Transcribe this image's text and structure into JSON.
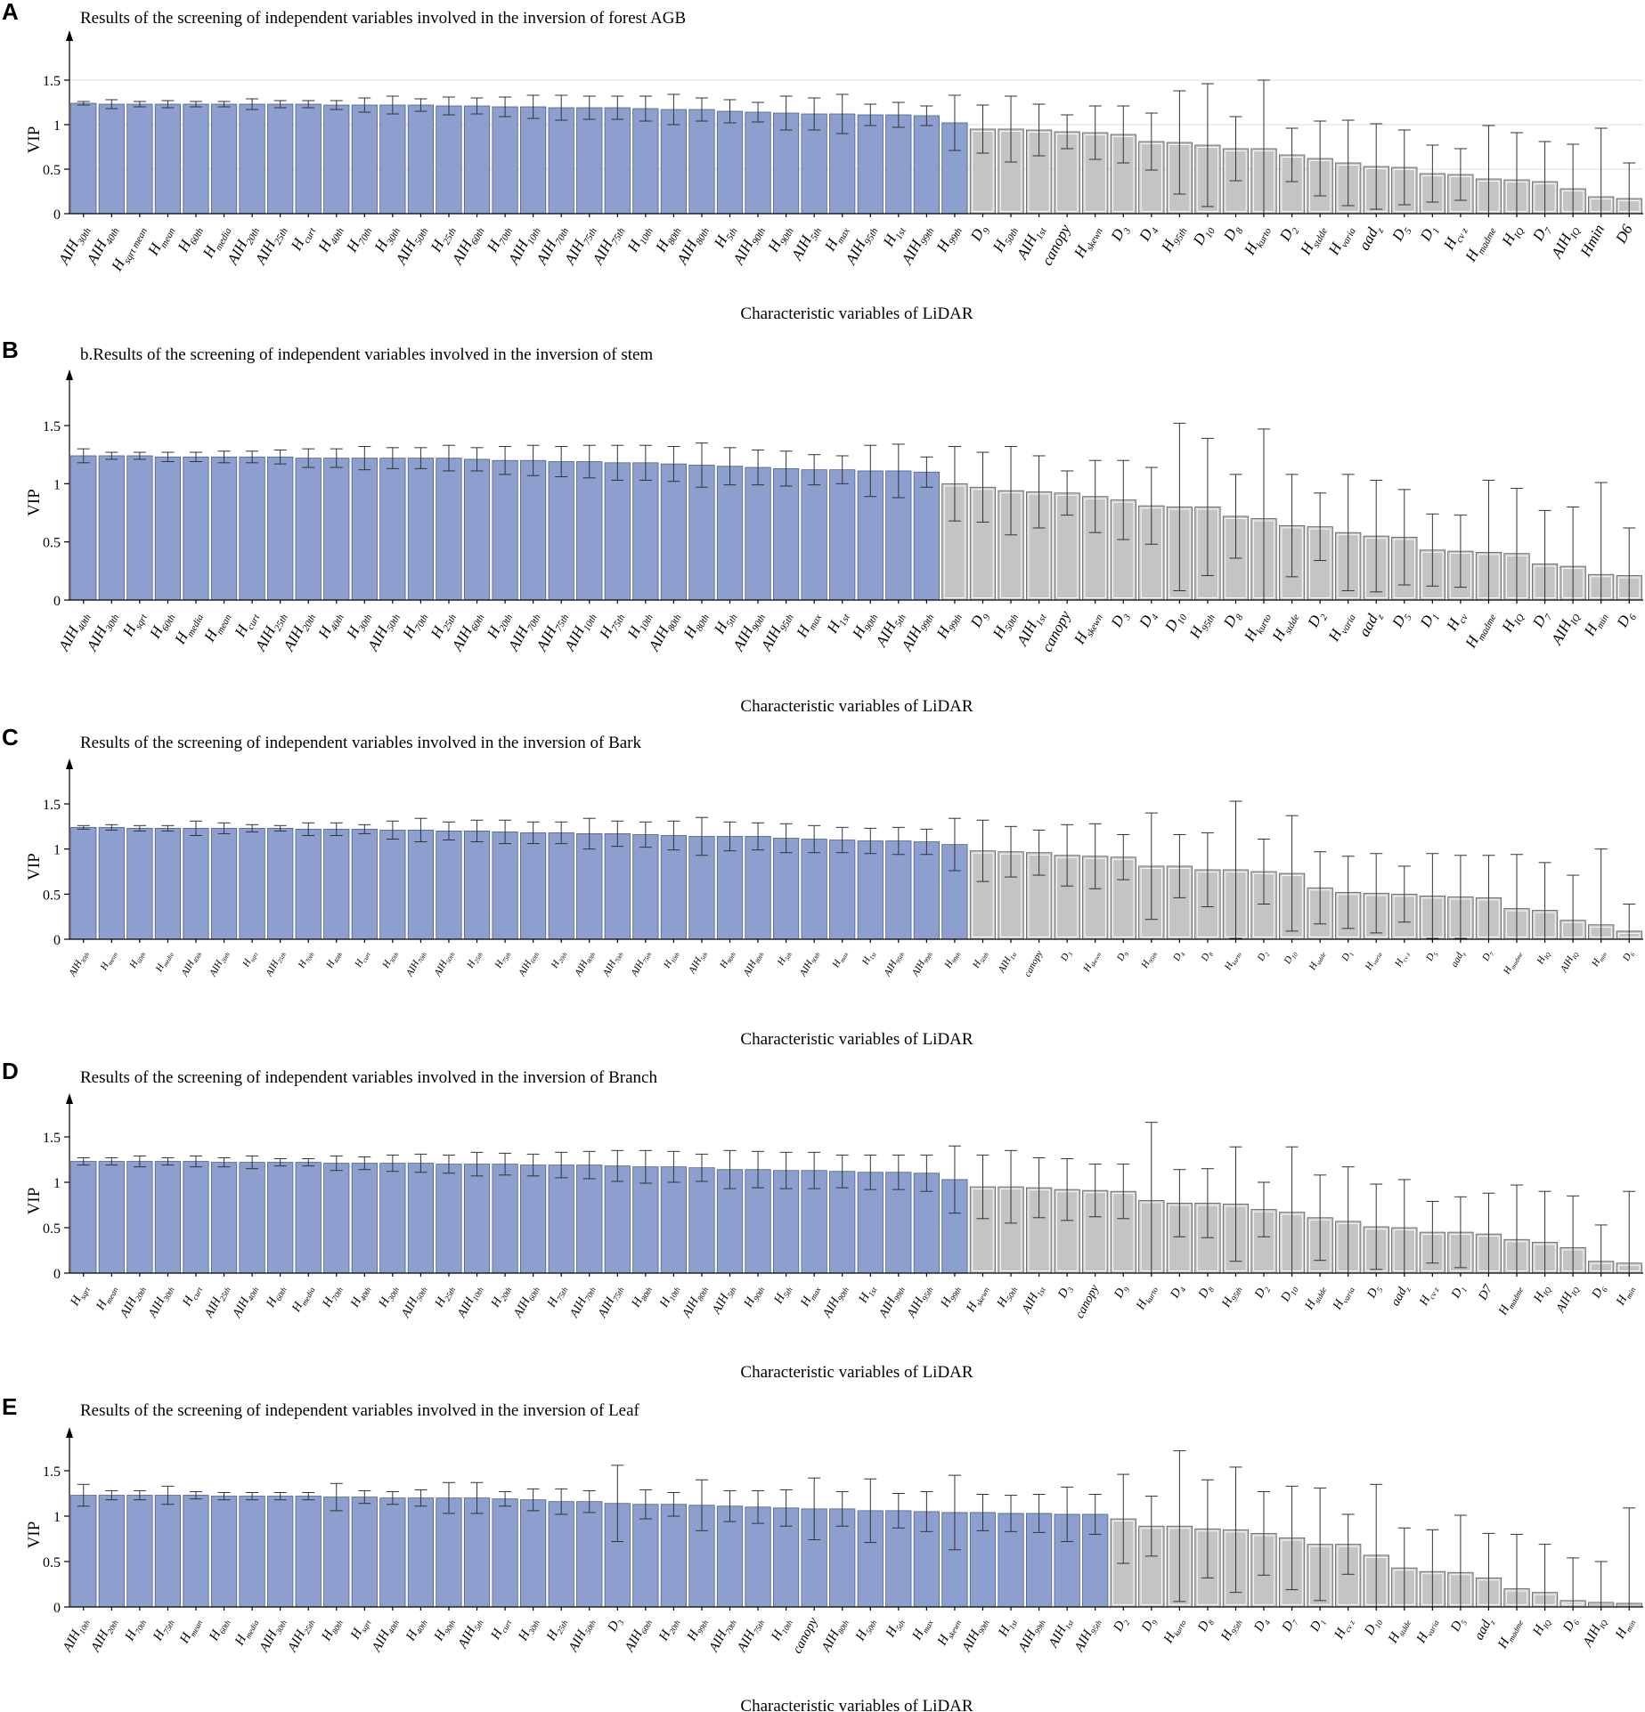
{
  "xlabel": "Characteristic variables of LiDAR",
  "ylabel": "VIP",
  "colors": {
    "selected": "#8c9fcf",
    "rejected": "#c4c4c4"
  },
  "chart_data": [
    {
      "type": "bar",
      "letter": "A",
      "title": "Results of the screening of independent variables involved in the inversion of forest AGB",
      "ylim": [
        0,
        1.5
      ],
      "yticks": [
        0,
        0.5,
        1,
        1.5
      ],
      "grid": true,
      "categories": [
        "AIH_30th",
        "AIH_40th",
        "H_sqrt_mean",
        "H_mean",
        "H_60th",
        "H_media",
        "AIH_20th",
        "AIH_25th",
        "H_curt",
        "H_40th",
        "H_70th",
        "H_30th",
        "AIH_50th",
        "H_25th",
        "AIH_60th",
        "H_70th",
        "AIH_10th",
        "AIH_70th",
        "AIH_75th",
        "AIH_75th",
        "H_10th",
        "H_80th",
        "AIH_80th",
        "H_5th",
        "AIH_90th",
        "H_90th",
        "AIH_5th",
        "H_max",
        "AIH_95th",
        "H_1st",
        "AIH_99th",
        "H_99th",
        "D_9",
        "H_50th",
        "AIH_1st",
        "canopy",
        "H_skewn",
        "D_3",
        "D_4",
        "H_95th",
        "D_10",
        "D_8",
        "H_kurto",
        "D_2",
        "H_stdde",
        "H_varia",
        "aad_z",
        "D_5",
        "D_1",
        "H_cv_z",
        "H_madme",
        "H_IQ",
        "D_7",
        "AIH_IQ",
        "Hmin",
        "D6"
      ],
      "values": [
        1.24,
        1.23,
        1.23,
        1.23,
        1.23,
        1.23,
        1.23,
        1.23,
        1.23,
        1.22,
        1.22,
        1.22,
        1.22,
        1.21,
        1.21,
        1.2,
        1.2,
        1.19,
        1.19,
        1.19,
        1.18,
        1.17,
        1.17,
        1.15,
        1.14,
        1.13,
        1.12,
        1.12,
        1.11,
        1.11,
        1.1,
        1.02,
        0.95,
        0.95,
        0.94,
        0.92,
        0.91,
        0.89,
        0.81,
        0.8,
        0.77,
        0.73,
        0.73,
        0.66,
        0.62,
        0.57,
        0.53,
        0.52,
        0.45,
        0.44,
        0.39,
        0.38,
        0.36,
        0.28,
        0.19,
        0.17
      ],
      "errors": [
        0.02,
        0.05,
        0.03,
        0.04,
        0.03,
        0.03,
        0.06,
        0.04,
        0.04,
        0.05,
        0.08,
        0.1,
        0.07,
        0.1,
        0.09,
        0.11,
        0.13,
        0.14,
        0.13,
        0.13,
        0.14,
        0.17,
        0.13,
        0.13,
        0.11,
        0.19,
        0.18,
        0.22,
        0.12,
        0.14,
        0.11,
        0.31,
        0.27,
        0.37,
        0.29,
        0.19,
        0.3,
        0.32,
        0.32,
        0.58,
        0.69,
        0.36,
        0.77,
        0.3,
        0.42,
        0.48,
        0.48,
        0.42,
        0.32,
        0.29,
        0.6,
        0.53,
        0.45,
        0.5,
        0.77,
        0.4
      ],
      "highlighted_count": 32
    },
    {
      "type": "bar",
      "letter": "B",
      "title": "b.Results of the screening of independent variables involved in the inversion of stem",
      "ylim": [
        0,
        1.5
      ],
      "yticks": [
        0,
        0.5,
        1,
        1.5
      ],
      "grid": false,
      "categories": [
        "AIH_40th",
        "AIH_30th",
        "H_sqrt",
        "H_60th",
        "H_media",
        "H_mean",
        "H_curt",
        "AIH_25th",
        "AIH_20th",
        "H_40th",
        "H_30th",
        "AIH_50th",
        "H_70th",
        "H_25th",
        "AIH_60th",
        "H_20th",
        "AIH_70th",
        "AIH_75th",
        "AIH_10th",
        "H_75th",
        "H_10th",
        "AIH_80th",
        "H_80th",
        "H_5th",
        "AIH_90th",
        "AIH_95th",
        "H_max",
        "H_1st",
        "H_90th",
        "AIH_5th",
        "AIH_99th",
        "H_99th",
        "D_9",
        "H_50th",
        "AIH_1st",
        "canopy",
        "H_skewn",
        "D_3",
        "D_4",
        "D_10",
        "H_95th",
        "D_8",
        "H_kurto",
        "H_stdde",
        "D_2",
        "H_varia",
        "aad_z",
        "D_5",
        "D_1",
        "H_cv",
        "H_madme",
        "H_IQ",
        "D_7",
        "AIH_IQ",
        "H_min",
        "D_6"
      ],
      "values": [
        1.24,
        1.24,
        1.24,
        1.23,
        1.23,
        1.23,
        1.23,
        1.23,
        1.22,
        1.22,
        1.22,
        1.22,
        1.22,
        1.22,
        1.21,
        1.2,
        1.2,
        1.19,
        1.19,
        1.18,
        1.18,
        1.17,
        1.16,
        1.15,
        1.14,
        1.13,
        1.12,
        1.12,
        1.11,
        1.11,
        1.1,
        1.0,
        0.97,
        0.94,
        0.93,
        0.92,
        0.89,
        0.86,
        0.81,
        0.8,
        0.8,
        0.72,
        0.7,
        0.64,
        0.63,
        0.58,
        0.55,
        0.54,
        0.43,
        0.42,
        0.41,
        0.4,
        0.31,
        0.29,
        0.22,
        0.21
      ],
      "errors": [
        0.06,
        0.03,
        0.03,
        0.04,
        0.04,
        0.05,
        0.05,
        0.06,
        0.08,
        0.08,
        0.1,
        0.09,
        0.09,
        0.11,
        0.1,
        0.12,
        0.13,
        0.13,
        0.14,
        0.15,
        0.15,
        0.15,
        0.19,
        0.16,
        0.15,
        0.15,
        0.13,
        0.12,
        0.22,
        0.23,
        0.13,
        0.32,
        0.3,
        0.38,
        0.31,
        0.19,
        0.31,
        0.34,
        0.33,
        0.72,
        0.59,
        0.36,
        0.77,
        0.44,
        0.29,
        0.5,
        0.48,
        0.41,
        0.31,
        0.31,
        0.62,
        0.56,
        0.46,
        0.51,
        0.79,
        0.41
      ],
      "highlighted_count": 31
    },
    {
      "type": "bar",
      "letter": "C",
      "title": "Results of the screening of independent variables involved in the inversion of Bark",
      "ylim": [
        0,
        1.5
      ],
      "yticks": [
        0,
        0.5,
        1,
        1.5
      ],
      "grid": false,
      "categories": [
        "AIH_30th",
        "H_mean",
        "H_60th",
        "H_media",
        "AIH_40th",
        "AIH_20th",
        "H_sqrt",
        "AIH_25th",
        "H_70th",
        "H_40th",
        "H_curt",
        "H_30th",
        "AIH_70th",
        "AIH_50th",
        "H_25th",
        "H_75th",
        "AIH_60th",
        "H_20th",
        "AIH_80th",
        "AIH_70th",
        "AIH_75th",
        "H_10th",
        "AIH_5th",
        "H_90th",
        "AIH_80th",
        "H_5th",
        "AIH_90th",
        "H_max",
        "H_1st",
        "AIH_95th",
        "AIH_99th",
        "H_99th",
        "H_50th",
        "AIH_1st",
        "canopy",
        "D_3",
        "H_skewn",
        "D_9",
        "H_95th",
        "D_4",
        "D_8",
        "H_kurto",
        "D_2",
        "D_10",
        "H_stdde",
        "D_1",
        "H_varia",
        "H_cv_z",
        "D_5",
        "aad_z",
        "D_7",
        "H_madme",
        "H_IQ",
        "AIH_IQ",
        "H_min",
        "D_6"
      ],
      "values": [
        1.24,
        1.24,
        1.23,
        1.23,
        1.23,
        1.23,
        1.23,
        1.23,
        1.22,
        1.22,
        1.22,
        1.21,
        1.21,
        1.2,
        1.2,
        1.19,
        1.18,
        1.18,
        1.17,
        1.17,
        1.16,
        1.15,
        1.14,
        1.14,
        1.14,
        1.12,
        1.11,
        1.1,
        1.09,
        1.09,
        1.08,
        1.05,
        0.98,
        0.97,
        0.96,
        0.93,
        0.92,
        0.91,
        0.81,
        0.81,
        0.77,
        0.77,
        0.75,
        0.73,
        0.57,
        0.52,
        0.51,
        0.5,
        0.48,
        0.47,
        0.46,
        0.34,
        0.32,
        0.21,
        0.16,
        0.09
      ],
      "errors": [
        0.02,
        0.03,
        0.03,
        0.03,
        0.08,
        0.06,
        0.04,
        0.03,
        0.07,
        0.07,
        0.05,
        0.1,
        0.13,
        0.1,
        0.12,
        0.13,
        0.12,
        0.12,
        0.17,
        0.14,
        0.14,
        0.16,
        0.21,
        0.16,
        0.15,
        0.16,
        0.15,
        0.14,
        0.14,
        0.15,
        0.14,
        0.29,
        0.34,
        0.28,
        0.25,
        0.34,
        0.36,
        0.25,
        0.59,
        0.35,
        0.41,
        0.76,
        0.36,
        0.64,
        0.4,
        0.4,
        0.44,
        0.31,
        0.47,
        0.46,
        0.47,
        0.6,
        0.53,
        0.5,
        0.84,
        0.3
      ],
      "highlighted_count": 32
    },
    {
      "type": "bar",
      "letter": "D",
      "title": "Results of the screening of independent variables involved in the inversion of Branch",
      "ylim": [
        0,
        1.5
      ],
      "yticks": [
        0,
        0.5,
        1,
        1.5
      ],
      "grid": false,
      "categories": [
        "H_sqrt",
        "H_mean",
        "AIH_20th",
        "AIH_30th",
        "H_curt",
        "AIH_25th",
        "AIH_40th",
        "H_60th",
        "H_media",
        "H_70th",
        "H_40th",
        "H_30th",
        "AIH_50th",
        "H_25th",
        "AIH_10th",
        "H_20th",
        "AIH_60th",
        "H_75th",
        "AIH_70th",
        "AIH_75th",
        "H_80th",
        "H_10th",
        "AIH_80th",
        "AIH_5th",
        "H_90th",
        "H_5th",
        "H_max",
        "AIH_90th",
        "H_1st",
        "AIH_99th",
        "AIH_95th",
        "H_99th",
        "H_skewn",
        "H_50th",
        "AIH_1st",
        "D_3",
        "canopy",
        "D_9",
        "H_kurto",
        "D_4",
        "D_8",
        "H_95th",
        "D_2",
        "D_10",
        "H_stdde",
        "H_varia",
        "D_5",
        "aad_z",
        "H_cv_z",
        "D_1",
        "D7",
        "H_madme",
        "H_IQ",
        "AIH_IQ",
        "D_6",
        "H_min"
      ],
      "values": [
        1.23,
        1.23,
        1.23,
        1.23,
        1.23,
        1.22,
        1.22,
        1.22,
        1.22,
        1.21,
        1.21,
        1.21,
        1.21,
        1.2,
        1.2,
        1.2,
        1.19,
        1.19,
        1.19,
        1.18,
        1.17,
        1.17,
        1.16,
        1.14,
        1.14,
        1.13,
        1.13,
        1.12,
        1.11,
        1.11,
        1.1,
        1.03,
        0.95,
        0.95,
        0.94,
        0.92,
        0.91,
        0.9,
        0.8,
        0.77,
        0.77,
        0.76,
        0.7,
        0.67,
        0.61,
        0.57,
        0.51,
        0.5,
        0.45,
        0.45,
        0.43,
        0.37,
        0.34,
        0.28,
        0.13,
        0.11
      ],
      "errors": [
        0.04,
        0.04,
        0.06,
        0.04,
        0.06,
        0.05,
        0.07,
        0.04,
        0.04,
        0.08,
        0.07,
        0.09,
        0.1,
        0.1,
        0.13,
        0.12,
        0.12,
        0.14,
        0.15,
        0.17,
        0.18,
        0.17,
        0.15,
        0.21,
        0.2,
        0.2,
        0.2,
        0.18,
        0.19,
        0.19,
        0.2,
        0.37,
        0.35,
        0.4,
        0.33,
        0.34,
        0.29,
        0.3,
        0.86,
        0.37,
        0.38,
        0.63,
        0.3,
        0.72,
        0.47,
        0.6,
        0.47,
        0.53,
        0.34,
        0.39,
        0.45,
        0.6,
        0.56,
        0.57,
        0.4,
        0.79
      ],
      "highlighted_count": 32
    },
    {
      "type": "bar",
      "letter": "E",
      "title": "Results of the screening of independent variables involved in the inversion of  Leaf",
      "ylim": [
        0,
        1.5
      ],
      "yticks": [
        0,
        0.5,
        1,
        1.5
      ],
      "grid": false,
      "categories": [
        "AIH_10th",
        "AIH_20th",
        "H_70th",
        "H_75th",
        "H_mean",
        "H_60th",
        "H_media",
        "AIH_30th",
        "AIH_25th",
        "H_80th",
        "H_sqrt",
        "AIH_40th",
        "H_40th",
        "H_90th",
        "AIH_5th",
        "H_curt",
        "H_30th",
        "H_25th",
        "AIH_50th",
        "D_3",
        "AIH_60th",
        "H_20th",
        "H_99th",
        "AIH_70th",
        "AIH_75th",
        "H_10th",
        "canopy",
        "AIH_80th",
        "H_50th",
        "H_5th",
        "H_max",
        "H_skewn",
        "AIH_90th",
        "H_1st",
        "AIH_99th",
        "AIH_1st",
        "AIH_95th",
        "D_2",
        "D_9",
        "H_kurto",
        "D_8",
        "H_95th",
        "D_4",
        "D_7",
        "D_1",
        "H_cv_z",
        "D_10",
        "H_stdde",
        "H_varia",
        "D_5",
        "aad_z",
        "H_madme",
        "H_IQ",
        "D_6",
        "AIH_IQ",
        "H_min"
      ],
      "values": [
        1.23,
        1.23,
        1.23,
        1.23,
        1.23,
        1.22,
        1.22,
        1.22,
        1.22,
        1.21,
        1.21,
        1.2,
        1.2,
        1.2,
        1.2,
        1.19,
        1.18,
        1.16,
        1.16,
        1.14,
        1.13,
        1.13,
        1.12,
        1.11,
        1.1,
        1.09,
        1.08,
        1.08,
        1.06,
        1.06,
        1.05,
        1.04,
        1.04,
        1.03,
        1.03,
        1.02,
        1.02,
        0.97,
        0.89,
        0.89,
        0.86,
        0.85,
        0.81,
        0.76,
        0.69,
        0.69,
        0.57,
        0.43,
        0.39,
        0.38,
        0.32,
        0.2,
        0.16,
        0.07,
        0.05,
        0.04
      ],
      "errors": [
        0.12,
        0.05,
        0.05,
        0.1,
        0.04,
        0.04,
        0.04,
        0.04,
        0.04,
        0.15,
        0.07,
        0.07,
        0.09,
        0.17,
        0.17,
        0.08,
        0.12,
        0.14,
        0.12,
        0.42,
        0.16,
        0.13,
        0.28,
        0.17,
        0.18,
        0.2,
        0.34,
        0.19,
        0.35,
        0.19,
        0.22,
        0.41,
        0.2,
        0.2,
        0.21,
        0.3,
        0.22,
        0.49,
        0.33,
        0.83,
        0.54,
        0.69,
        0.46,
        0.57,
        0.62,
        0.33,
        0.78,
        0.44,
        0.46,
        0.63,
        0.49,
        0.6,
        0.53,
        0.47,
        0.45,
        1.05
      ],
      "highlighted_count": 37
    }
  ]
}
